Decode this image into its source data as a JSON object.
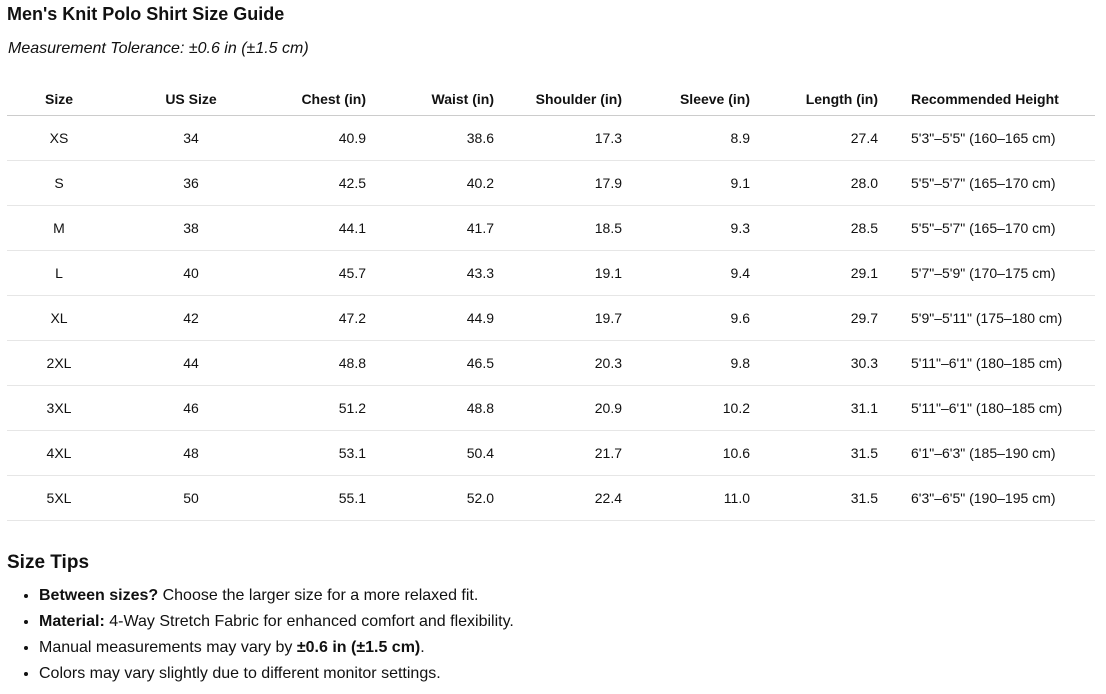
{
  "header": {
    "title": "Men's Knit Polo Shirt Size Guide",
    "subtitle": "Measurement Tolerance: ±0.6 in (±1.5 cm)"
  },
  "table": {
    "columns": [
      "Size",
      "US Size",
      "Chest (in)",
      "Waist (in)",
      "Shoulder (in)",
      "Sleeve (in)",
      "Length (in)",
      "Recommended Height"
    ],
    "rows": [
      [
        "XS",
        "34",
        "40.9",
        "38.6",
        "17.3",
        "8.9",
        "27.4",
        "5'3\"–5'5\" (160–165 cm)"
      ],
      [
        "S",
        "36",
        "42.5",
        "40.2",
        "17.9",
        "9.1",
        "28.0",
        "5'5\"–5'7\" (165–170 cm)"
      ],
      [
        "M",
        "38",
        "44.1",
        "41.7",
        "18.5",
        "9.3",
        "28.5",
        "5'5\"–5'7\" (165–170 cm)"
      ],
      [
        "L",
        "40",
        "45.7",
        "43.3",
        "19.1",
        "9.4",
        "29.1",
        "5'7\"–5'9\" (170–175 cm)"
      ],
      [
        "XL",
        "42",
        "47.2",
        "44.9",
        "19.7",
        "9.6",
        "29.7",
        "5'9\"–5'11\" (175–180 cm)"
      ],
      [
        "2XL",
        "44",
        "48.8",
        "46.5",
        "20.3",
        "9.8",
        "30.3",
        "5'11\"–6'1\" (180–185 cm)"
      ],
      [
        "3XL",
        "46",
        "51.2",
        "48.8",
        "20.9",
        "10.2",
        "31.1",
        "5'11\"–6'1\" (180–185 cm)"
      ],
      [
        "4XL",
        "48",
        "53.1",
        "50.4",
        "21.7",
        "10.6",
        "31.5",
        "6'1\"–6'3\" (185–190 cm)"
      ],
      [
        "5XL",
        "50",
        "55.1",
        "52.0",
        "22.4",
        "11.0",
        "31.5",
        "6'3\"–6'5\" (190–195 cm)"
      ]
    ]
  },
  "tips": {
    "title": "Size Tips",
    "items": [
      [
        {
          "text": "Between sizes?",
          "bold": true
        },
        {
          "text": " Choose the larger size for a more relaxed fit.",
          "bold": false
        }
      ],
      [
        {
          "text": "Material:",
          "bold": true
        },
        {
          "text": " 4-Way Stretch Fabric for enhanced comfort and flexibility.",
          "bold": false
        }
      ],
      [
        {
          "text": "Manual measurements may vary by ",
          "bold": false
        },
        {
          "text": "±0.6 in (±1.5 cm)",
          "bold": true
        },
        {
          "text": ".",
          "bold": false
        }
      ],
      [
        {
          "text": "Colors may vary slightly due to different monitor settings.",
          "bold": false
        }
      ]
    ]
  }
}
